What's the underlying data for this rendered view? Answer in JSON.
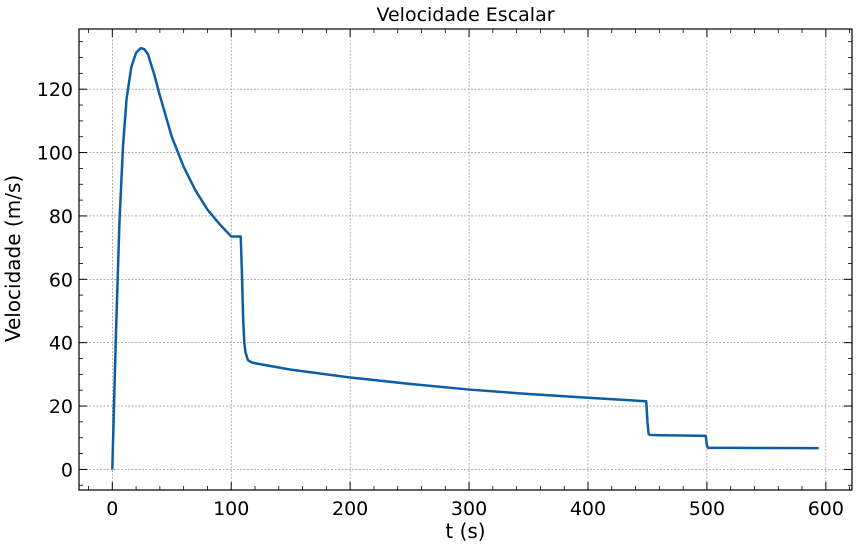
{
  "chart_data": {
    "type": "line",
    "title": "Velocidade Escalar",
    "xlabel": "t (s)",
    "ylabel": "Velocidade (m/s)",
    "xlim": [
      -28,
      622
    ],
    "ylim": [
      -6.5,
      139
    ],
    "xticks": [
      0,
      100,
      200,
      300,
      400,
      500,
      600
    ],
    "yticks": [
      0,
      20,
      40,
      60,
      80,
      100,
      120
    ],
    "x_minor_step": 20,
    "y_minor_step": 5,
    "grid": true,
    "line_color": "#0C5DA5",
    "series": [
      {
        "x": [
          0,
          3,
          6,
          9,
          12,
          16,
          20,
          24,
          27,
          30,
          35,
          40,
          50,
          60,
          70,
          80,
          90,
          100,
          108,
          109,
          110,
          111,
          112,
          114,
          117,
          120,
          150,
          200,
          250,
          300,
          350,
          400,
          449,
          450,
          451,
          452,
          460,
          480,
          499,
          500,
          501,
          520,
          550,
          594
        ],
        "y": [
          0,
          42,
          78,
          102,
          117,
          127,
          131.5,
          133,
          132.6,
          131,
          125,
          118,
          105,
          95.5,
          88,
          82,
          77.5,
          73.5,
          73.5,
          62,
          48,
          40,
          37,
          34.5,
          33.8,
          33.5,
          31.5,
          29,
          27,
          25.2,
          23.8,
          22.6,
          21.5,
          15,
          11.2,
          10.9,
          10.8,
          10.7,
          10.6,
          7.5,
          6.8,
          6.8,
          6.75,
          6.7
        ]
      }
    ]
  }
}
